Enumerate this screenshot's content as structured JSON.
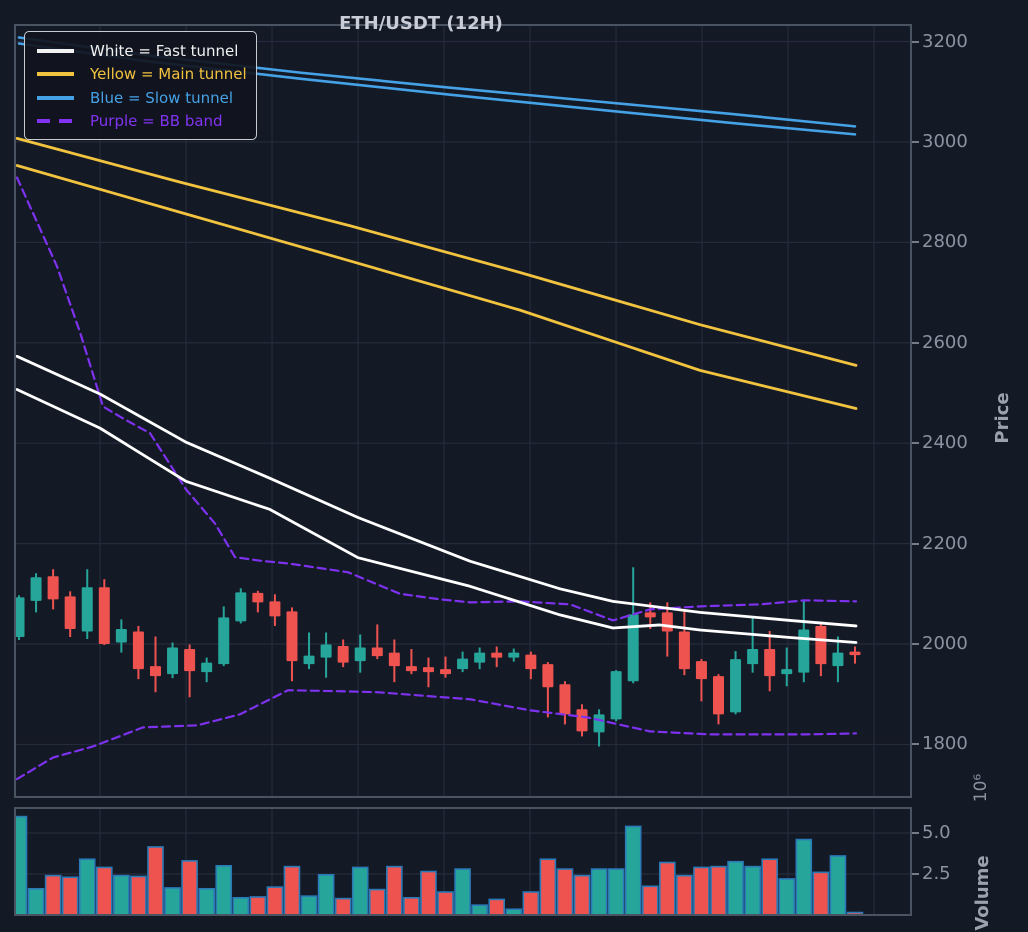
{
  "figure": {
    "title": "ETH/USDT (12H)"
  },
  "legend": {
    "items": [
      {
        "label": "White = Fast tunnel",
        "color": "#f2f2f2",
        "style": "solid"
      },
      {
        "label": "Yellow = Main tunnel",
        "color": "#f1c33f",
        "style": "solid"
      },
      {
        "label": "Blue = Slow tunnel",
        "color": "#45a2e6",
        "style": "solid"
      },
      {
        "label": "Purple = BB band",
        "color": "#8133f1",
        "style": "dashed"
      }
    ]
  },
  "chart_data": {
    "type": "candlestick",
    "title": "ETH/USDT (12H)",
    "symbol": "ETH/USDT",
    "interval": "12H",
    "grid": true,
    "x_axis": {
      "labels_visible": false,
      "n_candles": 50
    },
    "price_axis": {
      "label": "Price",
      "side": "right",
      "ticks": [
        3200,
        3000,
        2800,
        2600,
        2400,
        2200,
        2000,
        1800
      ],
      "ylim": [
        1694,
        3235
      ]
    },
    "volume_axis": {
      "label": "Volume",
      "offset_text": "10⁶",
      "side": "right",
      "ticks": [
        5.0,
        2.5
      ],
      "ylim": [
        0,
        6.6
      ]
    },
    "colors": {
      "up": "#26a69a",
      "down": "#ef5350",
      "volume_edge": "#2a7ab8",
      "fast_tunnel": "#ffffff",
      "main_tunnel": "#f1c33f",
      "slow_tunnel": "#45a2e6",
      "bb_band": "#7e32f0",
      "grid": "#252b3b",
      "spine": "#4a5362",
      "background": "#141926"
    },
    "candle_columns": [
      "open",
      "high",
      "low",
      "close",
      "volume_millions"
    ],
    "candles": [
      [
        2014,
        2097,
        2008,
        2093,
        6.0
      ],
      [
        2086,
        2141,
        2063,
        2133,
        1.6
      ],
      [
        2135,
        2149,
        2069,
        2089,
        2.4
      ],
      [
        2095,
        2105,
        2014,
        2030,
        2.3
      ],
      [
        2025,
        2149,
        2010,
        2113,
        3.4
      ],
      [
        2113,
        2129,
        1998,
        2000,
        2.9
      ],
      [
        2003,
        2049,
        1983,
        2030,
        2.4
      ],
      [
        2025,
        2036,
        1930,
        1950,
        2.35
      ],
      [
        1956,
        2015,
        1904,
        1936,
        4.15
      ],
      [
        1940,
        2003,
        1932,
        1993,
        1.65
      ],
      [
        1990,
        1999,
        1894,
        1946,
        3.3
      ],
      [
        1944,
        1973,
        1924,
        1963,
        1.6
      ],
      [
        1960,
        2075,
        1956,
        2053,
        3.0
      ],
      [
        2045,
        2111,
        2041,
        2103,
        1.05
      ],
      [
        2102,
        2106,
        2063,
        2083,
        1.1
      ],
      [
        2085,
        2099,
        2036,
        2055,
        1.7
      ],
      [
        2065,
        2073,
        1926,
        1966,
        2.95
      ],
      [
        1960,
        2023,
        1950,
        1977,
        1.15
      ],
      [
        1973,
        2023,
        1933,
        1999,
        2.45
      ],
      [
        1996,
        2009,
        1954,
        1963,
        1.0
      ],
      [
        1966,
        2019,
        1943,
        1993,
        2.9
      ],
      [
        1993,
        2039,
        1970,
        1976,
        1.55
      ],
      [
        1983,
        2009,
        1924,
        1956,
        2.95
      ],
      [
        1956,
        1990,
        1940,
        1946,
        1.05
      ],
      [
        1954,
        1973,
        1914,
        1944,
        2.65
      ],
      [
        1950,
        1975,
        1933,
        1940,
        1.4
      ],
      [
        1950,
        1985,
        1944,
        1971,
        2.8
      ],
      [
        1963,
        1993,
        1950,
        1983,
        0.6
      ],
      [
        1983,
        1995,
        1954,
        1973,
        0.95
      ],
      [
        1973,
        1991,
        1965,
        1983,
        0.35
      ],
      [
        1979,
        1985,
        1930,
        1950,
        1.4
      ],
      [
        1960,
        1964,
        1854,
        1914,
        3.4
      ],
      [
        1920,
        1926,
        1840,
        1860,
        2.8
      ],
      [
        1870,
        1880,
        1816,
        1826,
        2.4
      ],
      [
        1824,
        1870,
        1796,
        1860,
        2.8
      ],
      [
        1850,
        1948,
        1846,
        1946,
        2.8
      ],
      [
        1926,
        2153,
        1922,
        2059,
        5.4
      ],
      [
        2063,
        2083,
        2030,
        2053,
        1.75
      ],
      [
        2063,
        2083,
        1975,
        2025,
        3.2
      ],
      [
        2025,
        2065,
        1938,
        1950,
        2.4
      ],
      [
        1966,
        1970,
        1886,
        1930,
        2.9
      ],
      [
        1936,
        1940,
        1840,
        1860,
        2.95
      ],
      [
        1864,
        1986,
        1860,
        1970,
        3.25
      ],
      [
        1960,
        2053,
        1943,
        1990,
        2.95
      ],
      [
        1990,
        2026,
        1906,
        1936,
        3.4
      ],
      [
        1940,
        1993,
        1916,
        1950,
        2.2
      ],
      [
        1943,
        2089,
        1924,
        2029,
        4.6
      ],
      [
        2036,
        2039,
        1936,
        1960,
        2.6
      ],
      [
        1956,
        2015,
        1924,
        1983,
        3.6
      ],
      [
        1985,
        1995,
        1961,
        1978,
        0.15
      ]
    ],
    "series": [
      {
        "name": "slow_tunnel_upper",
        "color": "#45a2e6",
        "style": "solid",
        "width": 2.6,
        "points": [
          [
            19,
            3208
          ],
          [
            150,
            3172
          ],
          [
            300,
            3138
          ],
          [
            450,
            3108
          ],
          [
            600,
            3080
          ],
          [
            730,
            3056
          ],
          [
            855,
            3031
          ]
        ]
      },
      {
        "name": "slow_tunnel_lower",
        "color": "#45a2e6",
        "style": "solid",
        "width": 2.6,
        "points": [
          [
            19,
            3196
          ],
          [
            150,
            3160
          ],
          [
            300,
            3126
          ],
          [
            450,
            3094
          ],
          [
            600,
            3064
          ],
          [
            730,
            3038
          ],
          [
            855,
            3015
          ]
        ]
      },
      {
        "name": "main_tunnel_upper",
        "color": "#f1c33f",
        "style": "solid",
        "width": 2.8,
        "points": [
          [
            17,
            3007
          ],
          [
            180,
            2920
          ],
          [
            350,
            2833
          ],
          [
            520,
            2740
          ],
          [
            700,
            2636
          ],
          [
            856,
            2555
          ]
        ]
      },
      {
        "name": "main_tunnel_lower",
        "color": "#f1c33f",
        "style": "solid",
        "width": 2.8,
        "points": [
          [
            17,
            2953
          ],
          [
            180,
            2860
          ],
          [
            350,
            2763
          ],
          [
            520,
            2665
          ],
          [
            700,
            2545
          ],
          [
            856,
            2469
          ]
        ]
      },
      {
        "name": "bb_band_upper",
        "color": "#7e32f0",
        "style": "dashed",
        "width": 2.2,
        "points": [
          [
            17,
            2929
          ],
          [
            57,
            2752
          ],
          [
            80,
            2621
          ],
          [
            103,
            2473
          ],
          [
            125,
            2447
          ],
          [
            150,
            2420
          ],
          [
            186,
            2308
          ],
          [
            215,
            2240
          ],
          [
            235,
            2173
          ],
          [
            260,
            2166
          ],
          [
            290,
            2160
          ],
          [
            348,
            2143
          ],
          [
            400,
            2100
          ],
          [
            440,
            2089
          ],
          [
            470,
            2083
          ],
          [
            520,
            2085
          ],
          [
            570,
            2079
          ],
          [
            613,
            2047
          ],
          [
            650,
            2069
          ],
          [
            700,
            2075
          ],
          [
            760,
            2079
          ],
          [
            805,
            2087
          ],
          [
            856,
            2085
          ]
        ]
      },
      {
        "name": "bb_band_lower",
        "color": "#7e32f0",
        "style": "dashed",
        "width": 2.2,
        "points": [
          [
            17,
            1731
          ],
          [
            53,
            1774
          ],
          [
            93,
            1796
          ],
          [
            143,
            1834
          ],
          [
            197,
            1838
          ],
          [
            240,
            1860
          ],
          [
            288,
            1908
          ],
          [
            340,
            1906
          ],
          [
            378,
            1904
          ],
          [
            430,
            1896
          ],
          [
            470,
            1890
          ],
          [
            530,
            1868
          ],
          [
            587,
            1854
          ],
          [
            650,
            1826
          ],
          [
            710,
            1820
          ],
          [
            805,
            1820
          ],
          [
            856,
            1822
          ]
        ]
      },
      {
        "name": "fast_tunnel_upper",
        "color": "#ffffff",
        "style": "solid",
        "width": 2.8,
        "points": [
          [
            17,
            2573
          ],
          [
            100,
            2498
          ],
          [
            186,
            2402
          ],
          [
            270,
            2330
          ],
          [
            358,
            2252
          ],
          [
            470,
            2165
          ],
          [
            560,
            2110
          ],
          [
            613,
            2085
          ],
          [
            700,
            2063
          ],
          [
            790,
            2047
          ],
          [
            856,
            2036
          ]
        ]
      },
      {
        "name": "fast_tunnel_lower",
        "color": "#ffffff",
        "style": "solid",
        "width": 2.8,
        "points": [
          [
            17,
            2507
          ],
          [
            100,
            2430
          ],
          [
            186,
            2324
          ],
          [
            270,
            2268
          ],
          [
            358,
            2172
          ],
          [
            470,
            2115
          ],
          [
            560,
            2058
          ],
          [
            613,
            2032
          ],
          [
            660,
            2038
          ],
          [
            700,
            2028
          ],
          [
            790,
            2013
          ],
          [
            856,
            2003
          ]
        ]
      }
    ]
  }
}
